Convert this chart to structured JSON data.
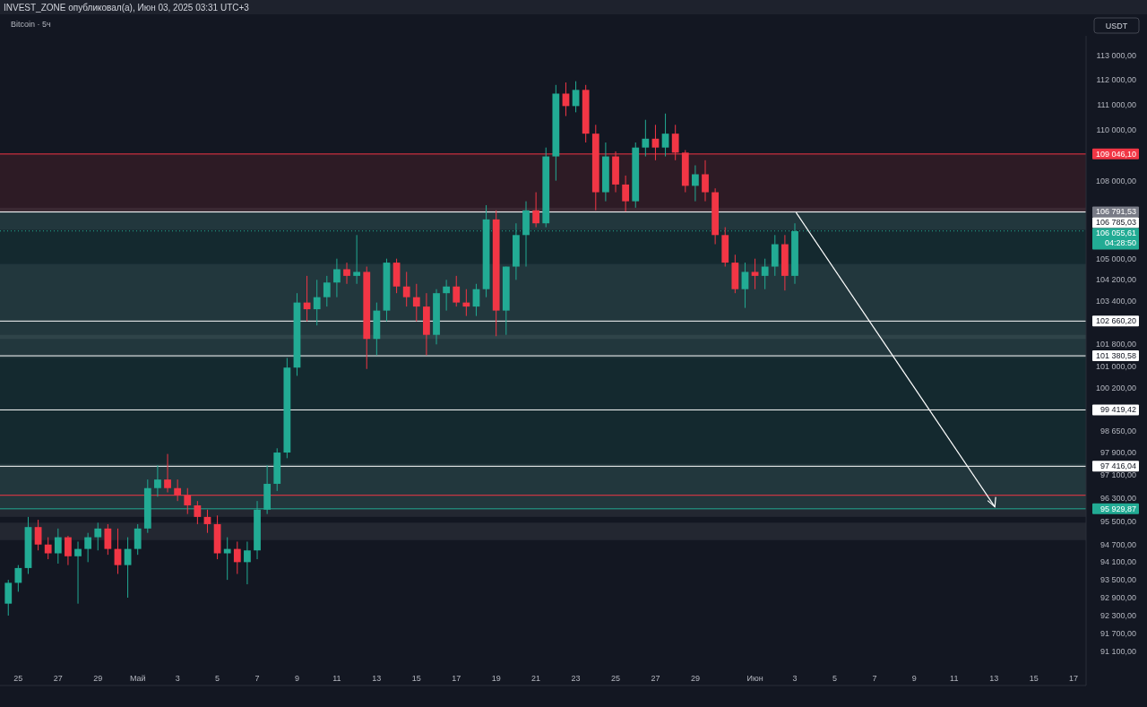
{
  "chart_data": {
    "type": "candlestick",
    "title": "Bitcoin · 5ч",
    "annotations": [
      "INVEST_ZONE опубликовал(а), Июн 03, 2025 03:31 UTC+3",
      "USDT"
    ],
    "x": [
      "2025-04-24T12:00",
      "2025-04-25T00:00",
      "2025-04-25T12:00",
      "2025-04-26T00:00",
      "2025-04-26T12:00",
      "2025-04-27T00:00",
      "2025-04-27T12:00",
      "2025-04-28T00:00",
      "2025-04-28T12:00",
      "2025-04-29T00:00",
      "2025-04-29T12:00",
      "2025-04-30T00:00",
      "2025-04-30T12:00",
      "2025-05-01T00:00",
      "2025-05-01T12:00",
      "2025-05-02T00:00",
      "2025-05-02T12:00",
      "2025-05-03T00:00",
      "2025-05-03T12:00",
      "2025-05-04T00:00",
      "2025-05-04T12:00",
      "2025-05-05T00:00",
      "2025-05-05T12:00",
      "2025-05-06T00:00",
      "2025-05-06T12:00",
      "2025-05-07T00:00",
      "2025-05-07T12:00",
      "2025-05-08T00:00",
      "2025-05-08T12:00",
      "2025-05-09T00:00",
      "2025-05-09T12:00",
      "2025-05-10T00:00",
      "2025-05-10T12:00",
      "2025-05-11T00:00",
      "2025-05-11T12:00",
      "2025-05-12T00:00",
      "2025-05-12T12:00",
      "2025-05-13T00:00",
      "2025-05-13T12:00",
      "2025-05-14T00:00",
      "2025-05-14T12:00",
      "2025-05-15T00:00",
      "2025-05-15T12:00",
      "2025-05-16T00:00",
      "2025-05-16T12:00",
      "2025-05-17T00:00",
      "2025-05-17T12:00",
      "2025-05-18T00:00",
      "2025-05-18T12:00",
      "2025-05-19T00:00",
      "2025-05-19T12:00",
      "2025-05-20T00:00",
      "2025-05-20T12:00",
      "2025-05-21T00:00",
      "2025-05-21T12:00",
      "2025-05-22T00:00",
      "2025-05-22T12:00",
      "2025-05-23T00:00",
      "2025-05-23T12:00",
      "2025-05-24T00:00",
      "2025-05-24T12:00",
      "2025-05-25T00:00",
      "2025-05-25T12:00",
      "2025-05-26T00:00",
      "2025-05-26T12:00",
      "2025-05-27T00:00",
      "2025-05-27T12:00",
      "2025-05-28T00:00",
      "2025-05-28T12:00",
      "2025-05-29T00:00",
      "2025-05-29T12:00",
      "2025-05-30T00:00",
      "2025-05-30T12:00",
      "2025-05-31T00:00",
      "2025-05-31T12:00",
      "2025-06-01T00:00",
      "2025-06-01T12:00",
      "2025-06-02T00:00",
      "2025-06-02T12:00",
      "2025-06-03T00:00"
    ],
    "ohlc": [
      [
        92700,
        93500,
        92300,
        93400
      ],
      [
        93400,
        94000,
        93100,
        93900
      ],
      [
        93900,
        95650,
        93700,
        95300
      ],
      [
        95300,
        95550,
        94500,
        94700
      ],
      [
        94700,
        94950,
        94200,
        94400
      ],
      [
        94400,
        95250,
        94050,
        94950
      ],
      [
        94950,
        95000,
        94000,
        94300
      ],
      [
        94300,
        94800,
        92700,
        94550
      ],
      [
        94550,
        95100,
        94100,
        94950
      ],
      [
        94950,
        95450,
        94500,
        95250
      ],
      [
        95250,
        95400,
        94350,
        94550
      ],
      [
        94550,
        95250,
        93700,
        94000
      ],
      [
        94000,
        94950,
        92900,
        94550
      ],
      [
        94550,
        95400,
        94350,
        95250
      ],
      [
        95250,
        96950,
        95100,
        96650
      ],
      [
        96650,
        97450,
        96350,
        96950
      ],
      [
        96950,
        97850,
        96500,
        96650
      ],
      [
        96650,
        96950,
        96200,
        96400
      ],
      [
        96400,
        96650,
        95750,
        96050
      ],
      [
        96050,
        96200,
        95400,
        95650
      ],
      [
        95650,
        95900,
        95100,
        95400
      ],
      [
        95400,
        95700,
        94200,
        94400
      ],
      [
        94400,
        94950,
        93500,
        94550
      ],
      [
        94550,
        94800,
        93700,
        94100
      ],
      [
        94100,
        94800,
        93350,
        94500
      ],
      [
        94500,
        96200,
        94200,
        95900
      ],
      [
        95900,
        97450,
        95750,
        96800
      ],
      [
        96800,
        98050,
        96550,
        97900
      ],
      [
        97900,
        101300,
        97700,
        100950
      ],
      [
        100950,
        103700,
        100650,
        103350
      ],
      [
        103350,
        104350,
        102650,
        103100
      ],
      [
        103100,
        104200,
        102500,
        103550
      ],
      [
        103550,
        104350,
        103200,
        104100
      ],
      [
        104100,
        105000,
        103550,
        104600
      ],
      [
        104600,
        104850,
        104050,
        104350
      ],
      [
        104350,
        105900,
        104050,
        104500
      ],
      [
        104500,
        104700,
        100900,
        102000
      ],
      [
        102000,
        103350,
        101400,
        103050
      ],
      [
        103050,
        105000,
        102650,
        104850
      ],
      [
        104850,
        105000,
        103700,
        103950
      ],
      [
        103950,
        104500,
        103200,
        103550
      ],
      [
        103550,
        104050,
        102650,
        103200
      ],
      [
        103200,
        103700,
        101400,
        102150
      ],
      [
        102150,
        103850,
        101800,
        103700
      ],
      [
        103700,
        104200,
        103050,
        103950
      ],
      [
        103950,
        104350,
        103200,
        103350
      ],
      [
        103350,
        103850,
        102850,
        103200
      ],
      [
        103200,
        104050,
        102850,
        103850
      ],
      [
        103850,
        107050,
        103550,
        106500
      ],
      [
        106500,
        106850,
        102100,
        103050
      ],
      [
        103050,
        104700,
        102150,
        104700
      ],
      [
        104700,
        106350,
        104200,
        105900
      ],
      [
        105900,
        107200,
        104700,
        106850
      ],
      [
        106850,
        107550,
        106200,
        106350
      ],
      [
        106350,
        109300,
        106200,
        108950
      ],
      [
        108950,
        111800,
        108000,
        111450
      ],
      [
        111450,
        111900,
        110550,
        110950
      ],
      [
        110950,
        111950,
        110700,
        111600
      ],
      [
        111600,
        111800,
        109500,
        109850
      ],
      [
        109850,
        110200,
        106850,
        107550
      ],
      [
        107550,
        109500,
        107200,
        108950
      ],
      [
        108950,
        109150,
        107550,
        107850
      ],
      [
        107850,
        108200,
        106800,
        107200
      ],
      [
        107200,
        109500,
        106950,
        109300
      ],
      [
        109300,
        110400,
        108950,
        109650
      ],
      [
        109650,
        110200,
        108800,
        109300
      ],
      [
        109300,
        110650,
        108950,
        109850
      ],
      [
        109850,
        110200,
        108800,
        109100
      ],
      [
        109100,
        109200,
        107550,
        107800
      ],
      [
        107800,
        108600,
        107200,
        108250
      ],
      [
        108250,
        108800,
        107200,
        107550
      ],
      [
        107550,
        107700,
        105550,
        105900
      ],
      [
        105900,
        106200,
        104700,
        104850
      ],
      [
        104850,
        105150,
        103700,
        103850
      ],
      [
        103850,
        104850,
        103150,
        104500
      ],
      [
        104500,
        105000,
        103850,
        104350
      ],
      [
        104350,
        105000,
        103850,
        104700
      ],
      [
        104700,
        105900,
        104350,
        105550
      ],
      [
        105550,
        105900,
        103800,
        104350
      ],
      [
        104350,
        106350,
        104050,
        106050
      ]
    ],
    "xlim": [
      "2025-04-24T02:00",
      "2025-06-17T15:00"
    ],
    "xticks": [
      {
        "value": "2025-04-25",
        "label": "25"
      },
      {
        "value": "2025-04-27",
        "label": "27"
      },
      {
        "value": "2025-04-29",
        "label": "29"
      },
      {
        "value": "2025-05-01",
        "label": "Май"
      },
      {
        "value": "2025-05-03",
        "label": "3"
      },
      {
        "value": "2025-05-05",
        "label": "5"
      },
      {
        "value": "2025-05-07",
        "label": "7"
      },
      {
        "value": "2025-05-09",
        "label": "9"
      },
      {
        "value": "2025-05-11",
        "label": "11"
      },
      {
        "value": "2025-05-13",
        "label": "13"
      },
      {
        "value": "2025-05-15",
        "label": "15"
      },
      {
        "value": "2025-05-17",
        "label": "17"
      },
      {
        "value": "2025-05-19",
        "label": "19"
      },
      {
        "value": "2025-05-21",
        "label": "21"
      },
      {
        "value": "2025-05-23",
        "label": "23"
      },
      {
        "value": "2025-05-25",
        "label": "25"
      },
      {
        "value": "2025-05-27",
        "label": "27"
      },
      {
        "value": "2025-05-29",
        "label": "29"
      },
      {
        "value": "2025-06-01",
        "label": "Июн"
      },
      {
        "value": "2025-06-03",
        "label": "3"
      },
      {
        "value": "2025-06-05",
        "label": "5"
      },
      {
        "value": "2025-06-07",
        "label": "7"
      },
      {
        "value": "2025-06-09",
        "label": "9"
      },
      {
        "value": "2025-06-11",
        "label": "11"
      },
      {
        "value": "2025-06-13",
        "label": "13"
      },
      {
        "value": "2025-06-15",
        "label": "15"
      },
      {
        "value": "2025-06-17",
        "label": "17"
      }
    ],
    "log": true,
    "ylim": [
      90000,
      113800
    ],
    "yticks": [
      {
        "value": 113000,
        "label": "113 000,00"
      },
      {
        "value": 112000,
        "label": "112 000,00"
      },
      {
        "value": 111000,
        "label": "111 000,00"
      },
      {
        "value": 110000,
        "label": "110 000,00"
      },
      {
        "value": 108000,
        "label": "108 000,00"
      },
      {
        "value": 105000,
        "label": "105 000,00"
      },
      {
        "value": 104200,
        "label": "104 200,00"
      },
      {
        "value": 103400,
        "label": "103 400,00"
      },
      {
        "value": 101800,
        "label": "101 800,00"
      },
      {
        "value": 101000,
        "label": "101 000,00"
      },
      {
        "value": 100200,
        "label": "100 200,00"
      },
      {
        "value": 98650,
        "label": "98 650,00"
      },
      {
        "value": 97900,
        "label": "97 900,00"
      },
      {
        "value": 97100,
        "label": "97 100,00"
      },
      {
        "value": 96300,
        "label": "96 300,00"
      },
      {
        "value": 95500,
        "label": "95 500,00"
      },
      {
        "value": 94700,
        "label": "94 700,00"
      },
      {
        "value": 94100,
        "label": "94 100,00"
      },
      {
        "value": 93500,
        "label": "93 500,00"
      },
      {
        "value": 92900,
        "label": "92 900,00"
      },
      {
        "value": 92300,
        "label": "92 300,00"
      },
      {
        "value": 91700,
        "label": "91 700,00"
      },
      {
        "value": 91100,
        "label": "91 100,00"
      }
    ],
    "bands": [
      {
        "axis": "y",
        "from": 102000,
        "to": 104800,
        "color": "#ffffff"
      },
      {
        "axis": "y",
        "from": 101300,
        "to": 102150,
        "color": "#ffffff"
      },
      {
        "axis": "y",
        "from": 95650,
        "to": 97500,
        "color": "#ffffff"
      },
      {
        "axis": "y",
        "from": 94850,
        "to": 95450,
        "color": "#ffffff"
      },
      {
        "axis": "y",
        "from": 106100,
        "to": 106950,
        "color": "#ffffff"
      },
      {
        "axis": "y",
        "from": 106791.53,
        "to": 109046.1,
        "color": "#f23645"
      },
      {
        "axis": "y",
        "from": 95929.87,
        "to": 106791.53,
        "color": "#22ab94"
      }
    ],
    "ref_lines": [
      {
        "axis": "y",
        "value": 109046.1,
        "label": "109 046,10",
        "color": "#f23645",
        "line_style": "solid"
      },
      {
        "axis": "y",
        "value": 106791.53,
        "label": "106 791,53",
        "color": "#787b86",
        "line_style": "solid"
      },
      {
        "axis": "y",
        "value": 106785.03,
        "label": "106 785,03",
        "color": "#ffffff",
        "line_style": "solid"
      },
      {
        "axis": "y",
        "value": 106055.61,
        "label": "106 055,61\n04:28:50",
        "color": "#22ab94",
        "line_style": "dotted"
      },
      {
        "axis": "y",
        "value": 102660.2,
        "label": "102 660,20",
        "color": "#ffffff",
        "line_style": "solid"
      },
      {
        "axis": "y",
        "value": 101380.58,
        "label": "101 380,58",
        "color": "#ffffff",
        "line_style": "solid"
      },
      {
        "axis": "y",
        "value": 99419.42,
        "label": "99 419,42",
        "color": "#ffffff",
        "line_style": "solid"
      },
      {
        "axis": "y",
        "value": 97416.04,
        "label": "97 416,04",
        "color": "#ffffff",
        "line_style": "solid"
      },
      {
        "axis": "y",
        "value": 96400,
        "label": null,
        "color": "#f23645",
        "line_style": "solid"
      },
      {
        "axis": "y",
        "value": 95929.87,
        "label": "95 929,87",
        "color": "#22ab94",
        "line_style": "solid"
      }
    ]
  }
}
